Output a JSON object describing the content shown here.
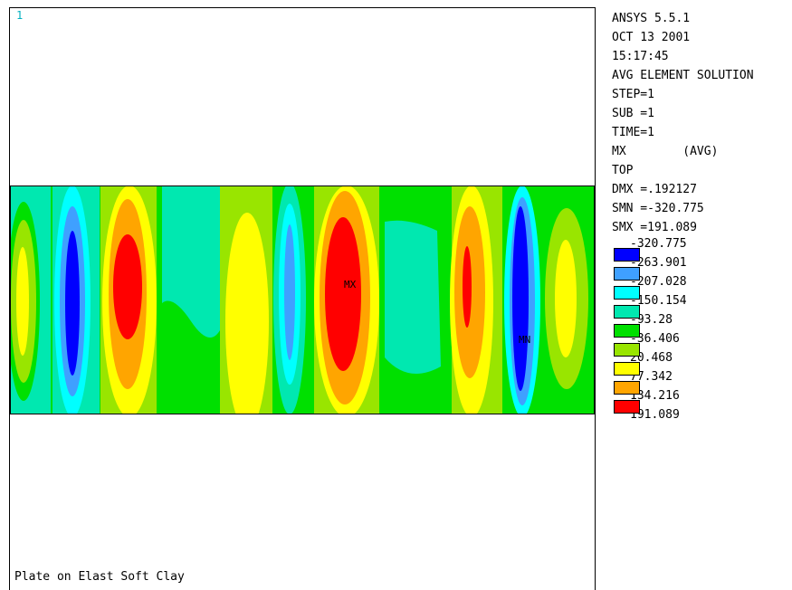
{
  "window_number": "1",
  "subtitle": "Plate on Elast Soft Clay",
  "info_lines": [
    "ANSYS 5.5.1",
    "OCT 13 2001",
    "15:17:45",
    "AVG ELEMENT SOLUTION",
    "STEP=1",
    "SUB =1",
    "TIME=1",
    "MX        (AVG)",
    "TOP",
    "DMX =.192127",
    "SMN =-320.775",
    "SMX =191.089"
  ],
  "legend": {
    "values": [
      "-320.775",
      "-263.901",
      "-207.028",
      "-150.154",
      "-93.28",
      "-36.406",
      "20.468",
      "77.342",
      "134.216",
      "191.089"
    ],
    "colors": [
      "#0000ff",
      "#3fa0ff",
      "#00ffff",
      "#00e8b0",
      "#00e000",
      "#99e500",
      "#ffff00",
      "#ffa500",
      "#ff0000"
    ]
  },
  "markers": {
    "max_label": "MX",
    "min_label": "MN"
  }
}
